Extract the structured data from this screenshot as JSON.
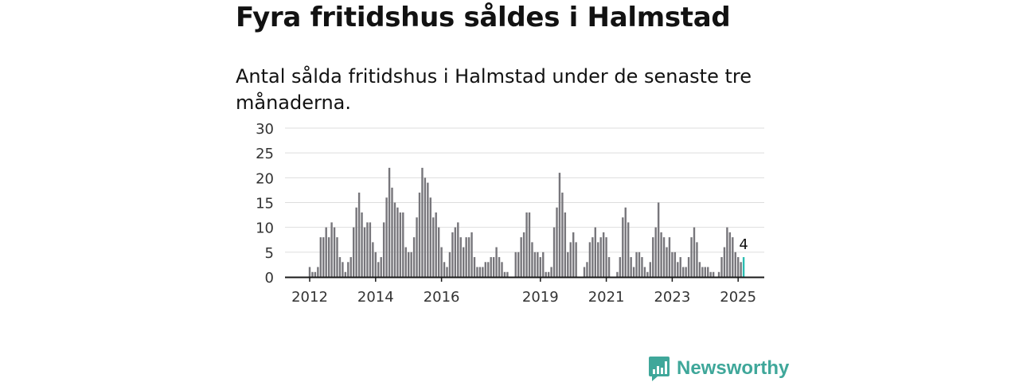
{
  "header": {
    "title": "Fyra fritidshus såldes i Halmstad",
    "subtitle": "Antal sålda fritidshus i Halmstad under de senaste tre månaderna."
  },
  "brand": {
    "name": "Newsworthy"
  },
  "colors": {
    "bar": "#77767b",
    "highlight": "#2bbdb1",
    "grid": "#dddddd",
    "axis": "#1a1a1a",
    "brand": "#3fa79a"
  },
  "chart_data": {
    "type": "bar",
    "start": "2012-01",
    "ylim": [
      0,
      30
    ],
    "yticks": [
      0,
      5,
      10,
      15,
      20,
      25,
      30
    ],
    "xticks": [
      "2012",
      "2014",
      "2016",
      "2019",
      "2021",
      "2023",
      "2025"
    ],
    "grid": true,
    "values": [
      2,
      1,
      1,
      2,
      8,
      8,
      10,
      8,
      11,
      10,
      8,
      4,
      3,
      1,
      3,
      4,
      10,
      14,
      17,
      13,
      10,
      11,
      11,
      7,
      5,
      3,
      4,
      11,
      16,
      22,
      18,
      15,
      14,
      13,
      13,
      6,
      5,
      5,
      8,
      12,
      17,
      22,
      20,
      19,
      16,
      12,
      13,
      10,
      6,
      3,
      2,
      5,
      9,
      10,
      11,
      8,
      6,
      8,
      8,
      9,
      4,
      2,
      2,
      2,
      3,
      3,
      4,
      4,
      6,
      4,
      3,
      1,
      1,
      0,
      0,
      5,
      5,
      8,
      9,
      13,
      13,
      7,
      5,
      5,
      4,
      5,
      1,
      1,
      2,
      10,
      14,
      21,
      17,
      13,
      5,
      7,
      9,
      7,
      0,
      0,
      2,
      3,
      7,
      8,
      10,
      7,
      8,
      9,
      8,
      4,
      0,
      0,
      1,
      4,
      12,
      14,
      11,
      4,
      2,
      5,
      5,
      4,
      2,
      1,
      3,
      8,
      10,
      15,
      9,
      8,
      6,
      8,
      5,
      5,
      3,
      4,
      2,
      2,
      4,
      8,
      10,
      7,
      3,
      2,
      2,
      2,
      1,
      1,
      0,
      1,
      4,
      6,
      10,
      9,
      8,
      5,
      4,
      3,
      4
    ],
    "last_value_label": "4"
  }
}
